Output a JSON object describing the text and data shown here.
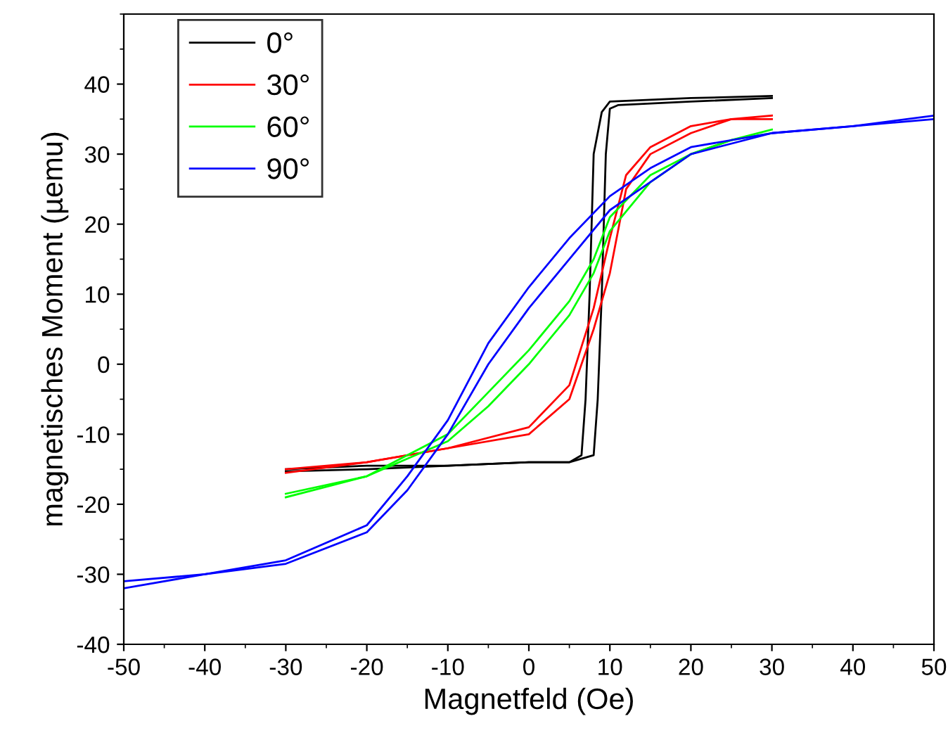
{
  "chart_data": {
    "type": "line",
    "xlabel": "Magnetfeld (Oe)",
    "ylabel": "magnetisches Moment (µemu)",
    "xlim": [
      -50,
      50
    ],
    "ylim": [
      -40,
      50
    ],
    "xticks": [
      -50,
      -40,
      -30,
      -20,
      -10,
      0,
      10,
      20,
      30,
      40,
      50
    ],
    "yticks": [
      -40,
      -30,
      -20,
      -10,
      0,
      10,
      20,
      30,
      40
    ],
    "grid": false,
    "legend": "top left",
    "marker": "none",
    "line_style": "solid",
    "series": [
      {
        "name": "0°",
        "color": "#000000",
        "x": [
          -30,
          -20,
          -10,
          0,
          5,
          8,
          8.5,
          9,
          9.5,
          10,
          11,
          20,
          30
        ],
        "values": [
          -15,
          -14.5,
          -14.5,
          -14,
          -14,
          -13,
          -5,
          10,
          30,
          36.5,
          37,
          37.5,
          38
        ]
      },
      {
        "color": "#000000",
        "x": [
          30,
          20,
          10,
          9,
          8,
          7.5,
          7,
          6.5,
          5,
          0,
          -10,
          -20,
          -30
        ],
        "values": [
          38.3,
          38,
          37.5,
          36,
          30,
          10,
          -5,
          -13,
          -14,
          -14,
          -14.5,
          -15,
          -15.3
        ]
      },
      {
        "name": "30°",
        "color": "#ff0000",
        "x": [
          -30,
          -20,
          -10,
          0,
          5,
          8,
          10,
          12,
          15,
          20,
          25,
          30
        ],
        "values": [
          -15,
          -14,
          -12,
          -10,
          -5,
          5,
          13,
          25,
          30,
          33,
          35,
          35
        ]
      },
      {
        "color": "#ff0000",
        "x": [
          30,
          25,
          20,
          15,
          12,
          10,
          8,
          5,
          0,
          -10,
          -20,
          -30
        ],
        "values": [
          35.5,
          35,
          34,
          31,
          27,
          18,
          8,
          -3,
          -9,
          -12,
          -14,
          -15.5
        ]
      },
      {
        "name": "60°",
        "color": "#00ff00",
        "x": [
          -30,
          -20,
          -10,
          -5,
          0,
          5,
          8,
          10,
          15,
          20,
          25,
          30
        ],
        "values": [
          -19,
          -16,
          -11,
          -6,
          0,
          7,
          13,
          19,
          26,
          30,
          32,
          33
        ]
      },
      {
        "color": "#00ff00",
        "x": [
          30,
          25,
          20,
          15,
          10,
          8,
          5,
          0,
          -5,
          -10,
          -20,
          -30
        ],
        "values": [
          33.5,
          32,
          30,
          27,
          21,
          15,
          9,
          2,
          -4,
          -10,
          -16,
          -18.5
        ]
      },
      {
        "name": "90°",
        "color": "#0000ff",
        "x": [
          -50,
          -40,
          -30,
          -20,
          -15,
          -10,
          -5,
          0,
          5,
          10,
          15,
          20,
          30,
          40,
          50
        ],
        "values": [
          -31,
          -30,
          -28.5,
          -24,
          -18,
          -10,
          0,
          8,
          15,
          22,
          26,
          30,
          33,
          34,
          35
        ]
      },
      {
        "color": "#0000ff",
        "x": [
          50,
          40,
          30,
          20,
          15,
          10,
          5,
          0,
          -5,
          -10,
          -15,
          -20,
          -30,
          -40,
          -50
        ],
        "values": [
          35.5,
          34,
          33,
          31,
          28,
          24,
          18,
          11,
          3,
          -8,
          -16,
          -23,
          -28,
          -30,
          -32
        ]
      }
    ]
  }
}
